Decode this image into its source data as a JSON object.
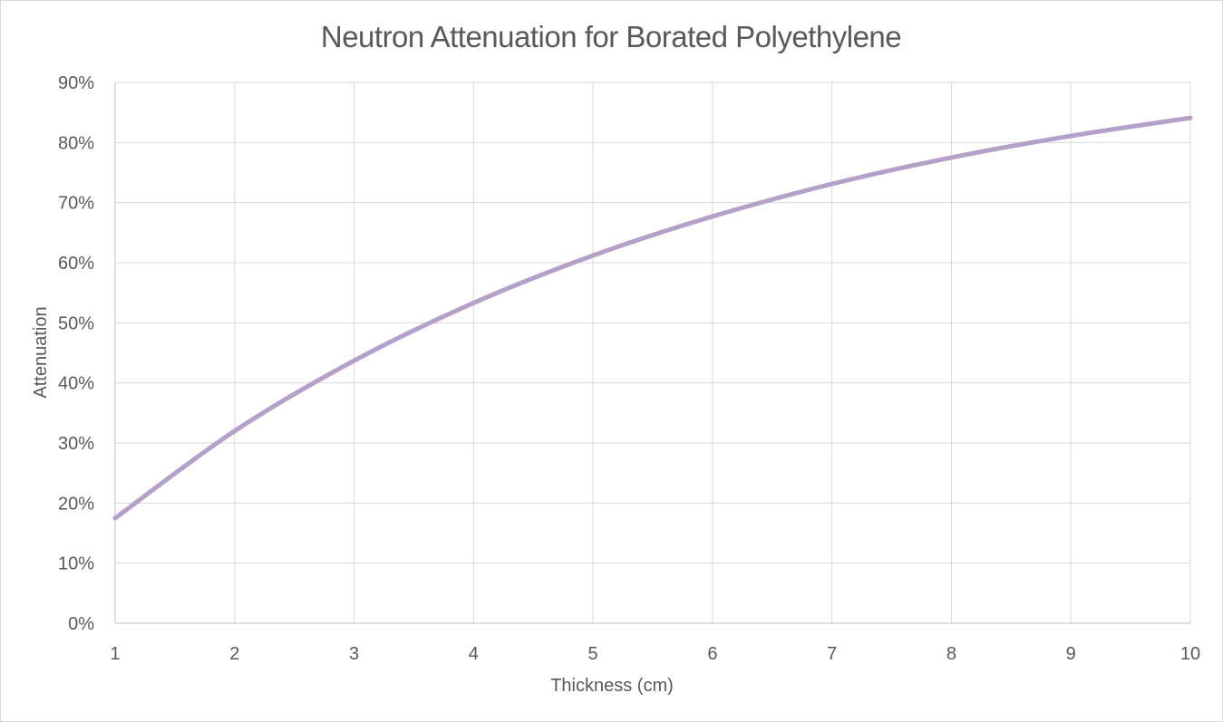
{
  "chart_data": {
    "type": "line",
    "title": "Neutron Attenuation for Borated Polyethylene",
    "xlabel": "Thickness (cm)",
    "ylabel": "Attenuation",
    "x": [
      1,
      2,
      3,
      4,
      5,
      6,
      7,
      8,
      9,
      10
    ],
    "xlim": [
      1,
      10
    ],
    "ylim": [
      0,
      0.9
    ],
    "x_ticks": [
      "1",
      "2",
      "3",
      "4",
      "5",
      "6",
      "7",
      "8",
      "9",
      "10"
    ],
    "y_ticks": [
      "0%",
      "10%",
      "20%",
      "30%",
      "40%",
      "50%",
      "60%",
      "70%",
      "80%",
      "90%"
    ],
    "series": [
      {
        "values": [
          0.175,
          0.32,
          0.437,
          0.533,
          0.612,
          0.677,
          0.731,
          0.775,
          0.811,
          0.841
        ],
        "color": "#b4a0c8"
      }
    ],
    "grid": true,
    "legend": "none"
  }
}
